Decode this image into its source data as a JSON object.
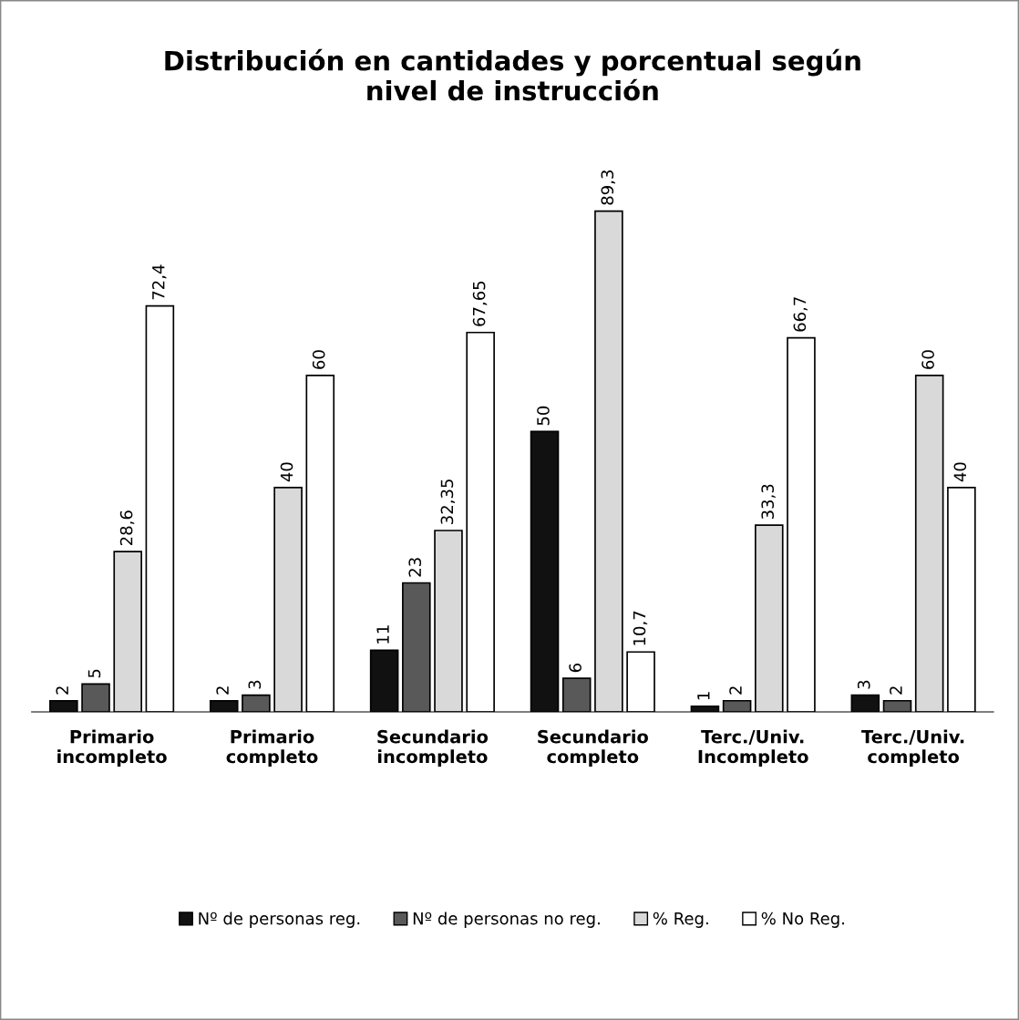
{
  "chart_data": {
    "type": "bar",
    "title": "Distribución en cantidades y porcentual según\nnivel de instrucción",
    "categories": [
      "Primario\nincompleto",
      "Primario\ncompleto",
      "Secundario\nincompleto",
      "Secundario\ncompleto",
      "Terc./Univ.\nIncompleto",
      "Terc./Univ.\ncompleto"
    ],
    "series": [
      {
        "name": "Nº de personas reg.",
        "color": "#111111",
        "values": [
          2,
          2,
          11,
          50,
          1,
          3
        ],
        "value_labels": [
          "2",
          "2",
          "11",
          "50",
          "1",
          "3"
        ]
      },
      {
        "name": "Nº de personas no reg.",
        "color": "#595959",
        "values": [
          5,
          3,
          23,
          6,
          2,
          2
        ],
        "value_labels": [
          "5",
          "3",
          "23",
          "6",
          "2",
          "2"
        ]
      },
      {
        "name": "% Reg.",
        "color": "#d9d9d9",
        "values": [
          28.6,
          40,
          32.35,
          89.3,
          33.3,
          60
        ],
        "value_labels": [
          "28,6",
          "40",
          "32,35",
          "89,3",
          "33,3",
          "60"
        ]
      },
      {
        "name": "% No Reg.",
        "color": "#ffffff",
        "values": [
          72.4,
          60,
          67.65,
          10.7,
          66.7,
          40
        ],
        "value_labels": [
          "72,4",
          "60",
          "67,65",
          "10,7",
          "66,7",
          "40"
        ]
      }
    ],
    "legend": "bottom",
    "grid": false,
    "tick_labels": "x"
  }
}
